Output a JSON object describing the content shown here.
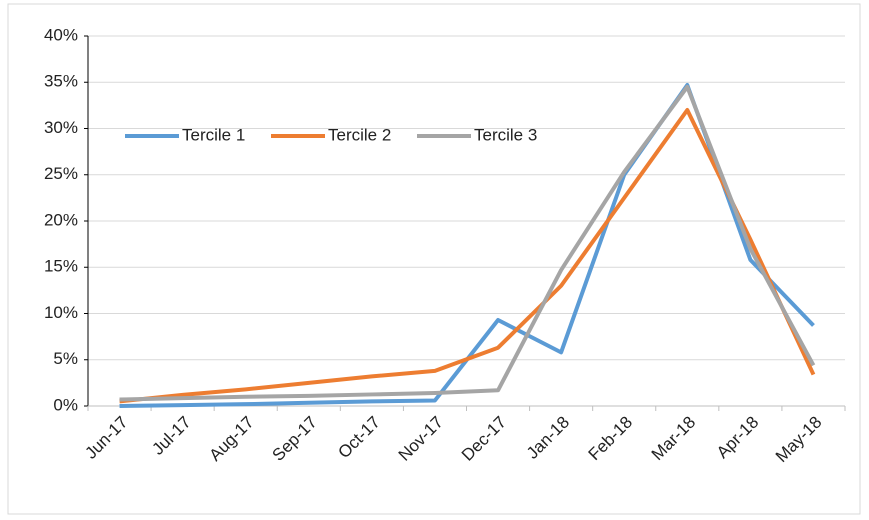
{
  "chart_data": {
    "type": "line",
    "categories": [
      "Jun-17",
      "Jul-17",
      "Aug-17",
      "Sep-17",
      "Oct-17",
      "Nov-17",
      "Dec-17",
      "Jan-18",
      "Feb-18",
      "Mar-18",
      "Apr-18",
      "May-18"
    ],
    "series": [
      {
        "name": "Tercile 1",
        "color": "#5b9bd5",
        "values": [
          0,
          0.1,
          0.2,
          0.35,
          0.5,
          0.6,
          9.3,
          5.8,
          25,
          34.7,
          15.8,
          8.7
        ]
      },
      {
        "name": "Tercile 2",
        "color": "#ed7d31",
        "values": [
          0.5,
          1.2,
          1.8,
          2.5,
          3.2,
          3.8,
          6.3,
          13,
          22.5,
          32,
          18,
          3.4
        ]
      },
      {
        "name": "Tercile 3",
        "color": "#a5a5a5",
        "values": [
          0.7,
          0.85,
          1.0,
          1.1,
          1.25,
          1.4,
          1.7,
          14.7,
          25.3,
          34.5,
          17,
          4.4
        ]
      }
    ],
    "ylim": [
      0,
      40
    ],
    "yticks": [
      {
        "value": 0,
        "label": "0%"
      },
      {
        "value": 5,
        "label": "5%"
      },
      {
        "value": 10,
        "label": "10%"
      },
      {
        "value": 15,
        "label": "15%"
      },
      {
        "value": 20,
        "label": "20%"
      },
      {
        "value": 25,
        "label": "25%"
      },
      {
        "value": 30,
        "label": "30%"
      },
      {
        "value": 35,
        "label": "35%"
      },
      {
        "value": 40,
        "label": "40%"
      }
    ],
    "grid": true,
    "legend": "top-left"
  }
}
